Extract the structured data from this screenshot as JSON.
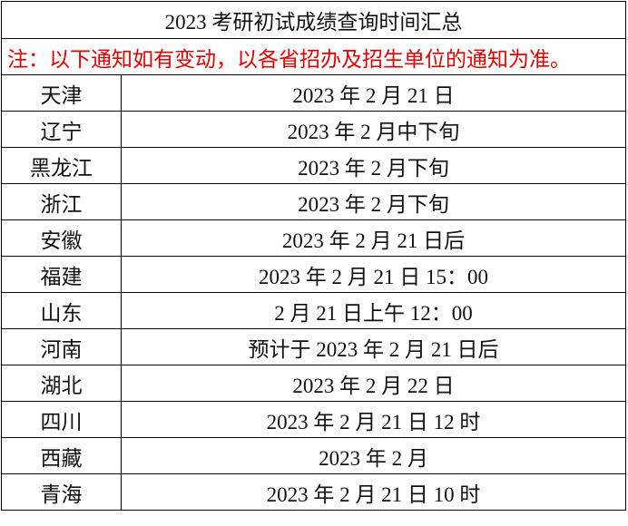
{
  "table": {
    "title": "2023 考研初试成绩查询时间汇总",
    "note": "注：以下通知如有变动，以各省招办及招生单位的通知为准。",
    "rows": [
      [
        "天津",
        "2023 年 2 月 21 日"
      ],
      [
        "辽宁",
        "2023 年 2 月中下旬"
      ],
      [
        "黑龙江",
        "2023 年 2 月下旬"
      ],
      [
        "浙江",
        "2023 年 2 月下旬"
      ],
      [
        "安徽",
        "2023 年 2 月 21 日后"
      ],
      [
        "福建",
        "2023 年 2 月 21 日 15：00"
      ],
      [
        "山东",
        "2 月 21 日上午 12：00"
      ],
      [
        "河南",
        "预计于 2023 年 2 月 21 日后"
      ],
      [
        "湖北",
        "2023 年 2 月 22 日"
      ],
      [
        "四川",
        "2023 年 2 月 21 日 12 时"
      ],
      [
        "西藏",
        "2023 年 2 月"
      ],
      [
        "青海",
        "2023 年 2 月 21 日 10 时"
      ]
    ]
  }
}
